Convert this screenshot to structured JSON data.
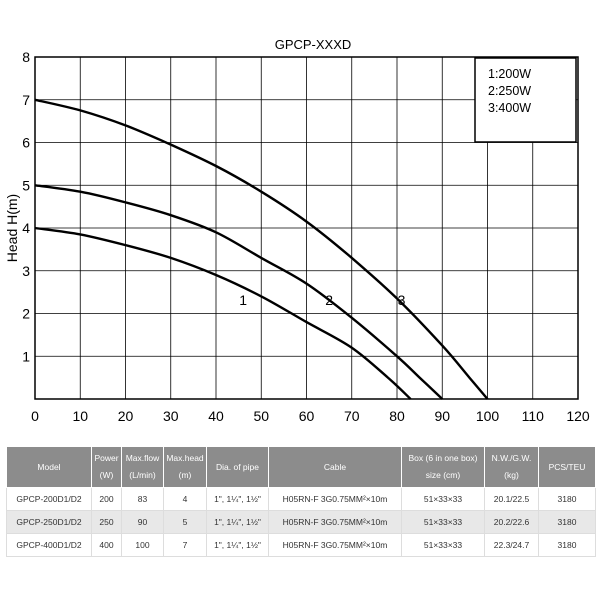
{
  "chart_data": {
    "type": "line",
    "title": "GPCP-XXXD",
    "ylabel": "Head H(m)",
    "xlabel": "",
    "xlim": [
      0,
      120
    ],
    "ylim": [
      0,
      8
    ],
    "x_ticks": [
      0,
      10,
      20,
      30,
      40,
      50,
      60,
      70,
      80,
      90,
      100,
      110,
      120
    ],
    "y_ticks": [
      1,
      2,
      3,
      4,
      5,
      6,
      7,
      8
    ],
    "grid": true,
    "legend": {
      "placement": "top-right",
      "entries": [
        "1:200W",
        "2:250W",
        "3:400W"
      ]
    },
    "series": [
      {
        "label": "1",
        "label_x": 46,
        "label_y": 2.2,
        "points": [
          [
            0,
            4.0
          ],
          [
            10,
            3.85
          ],
          [
            20,
            3.6
          ],
          [
            30,
            3.3
          ],
          [
            40,
            2.9
          ],
          [
            50,
            2.4
          ],
          [
            60,
            1.8
          ],
          [
            70,
            1.2
          ],
          [
            78,
            0.5
          ],
          [
            83,
            0
          ]
        ]
      },
      {
        "label": "2",
        "label_x": 65,
        "label_y": 2.2,
        "points": [
          [
            0,
            5.0
          ],
          [
            10,
            4.85
          ],
          [
            20,
            4.6
          ],
          [
            30,
            4.3
          ],
          [
            40,
            3.9
          ],
          [
            50,
            3.3
          ],
          [
            60,
            2.7
          ],
          [
            70,
            1.9
          ],
          [
            80,
            1.0
          ],
          [
            85,
            0.5
          ],
          [
            90,
            0
          ]
        ]
      },
      {
        "label": "3",
        "label_x": 81,
        "label_y": 2.2,
        "points": [
          [
            0,
            7.0
          ],
          [
            10,
            6.75
          ],
          [
            20,
            6.4
          ],
          [
            30,
            5.95
          ],
          [
            40,
            5.45
          ],
          [
            50,
            4.85
          ],
          [
            60,
            4.15
          ],
          [
            70,
            3.3
          ],
          [
            80,
            2.35
          ],
          [
            90,
            1.25
          ],
          [
            96,
            0.5
          ],
          [
            100,
            0
          ]
        ]
      }
    ]
  },
  "table": {
    "headers": [
      {
        "main": "Model",
        "sub": ""
      },
      {
        "main": "Power",
        "sub": "(W)"
      },
      {
        "main": "Max.flow",
        "sub": "(L/min)"
      },
      {
        "main": "Max.head",
        "sub": "(m)"
      },
      {
        "main": "Dia. of pipe",
        "sub": ""
      },
      {
        "main": "Cable",
        "sub": ""
      },
      {
        "main": "Box (6 in one box)",
        "sub": "size (cm)"
      },
      {
        "main": "N.W./G.W.",
        "sub": "(kg)"
      },
      {
        "main": "PCS/TEU",
        "sub": ""
      }
    ],
    "rows": [
      [
        "GPCP-200D1/D2",
        "200",
        "83",
        "4",
        "1\", 1¼\", 1½\"",
        "H05RN-F 3G0.75MM²×10m",
        "51×33×33",
        "20.1/22.5",
        "3180"
      ],
      [
        "GPCP-250D1/D2",
        "250",
        "90",
        "5",
        "1\", 1¼\", 1½\"",
        "H05RN-F 3G0.75MM²×10m",
        "51×33×33",
        "20.2/22.6",
        "3180"
      ],
      [
        "GPCP-400D1/D2",
        "400",
        "100",
        "7",
        "1\", 1¼\", 1½\"",
        "H05RN-F 3G0.75MM²×10m",
        "51×33×33",
        "22.3/24.7",
        "3180"
      ]
    ]
  }
}
